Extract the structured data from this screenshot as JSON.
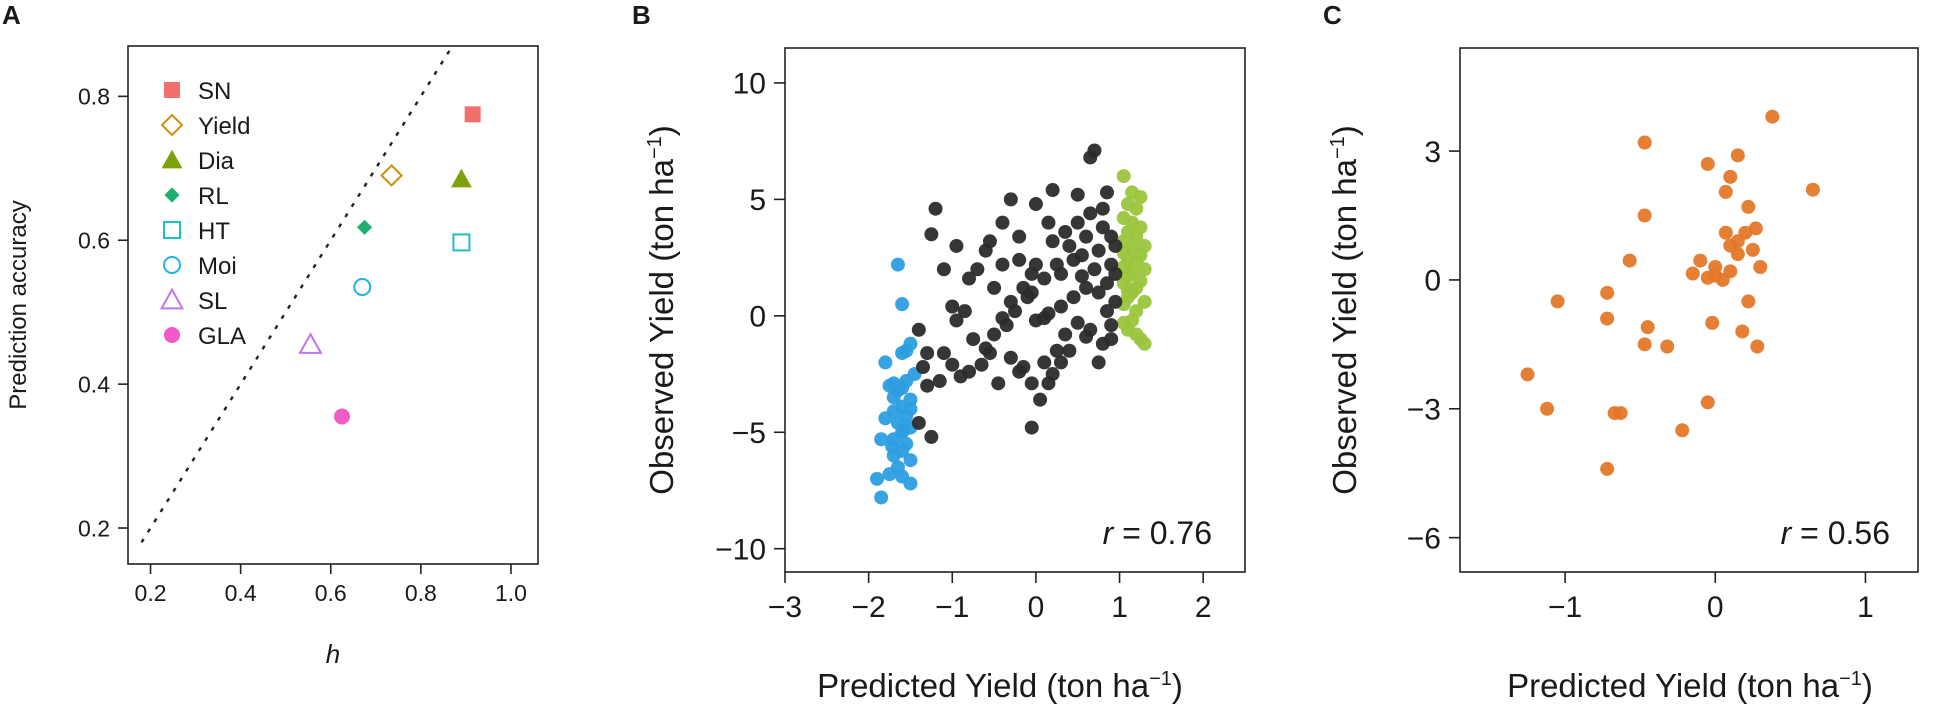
{
  "figure": {
    "panels": [
      {
        "letter": "A"
      },
      {
        "letter": "B"
      },
      {
        "letter": "C"
      }
    ]
  },
  "chart_data": [
    {
      "panel": "A",
      "type": "scatter",
      "xlabel": "h",
      "ylabel": "Prediction accuracy",
      "xlim": [
        0.15,
        1.06
      ],
      "ylim": [
        0.15,
        0.87
      ],
      "xticks": [
        0.2,
        0.4,
        0.6,
        0.8,
        1.0
      ],
      "xtick_labels": [
        "0.2",
        "0.4",
        "0.6",
        "0.8",
        "1.0"
      ],
      "yticks": [
        0.2,
        0.4,
        0.6,
        0.8
      ],
      "ytick_labels": [
        "0.2",
        "0.4",
        "0.6",
        "0.8"
      ],
      "reference_line": {
        "style": "dotted",
        "from": [
          0.18,
          0.18
        ],
        "to": [
          0.87,
          0.87
        ]
      },
      "legend_position": "top-left",
      "series": [
        {
          "name": "SN",
          "marker": "square",
          "filled": true,
          "color": "#f2706b",
          "x": 0.915,
          "y": 0.775
        },
        {
          "name": "Yield",
          "marker": "diamond",
          "filled": false,
          "color": "#c9920e",
          "x": 0.735,
          "y": 0.69
        },
        {
          "name": "Dia",
          "marker": "triangle",
          "filled": true,
          "color": "#7fa10b",
          "x": 0.89,
          "y": 0.685
        },
        {
          "name": "RL",
          "marker": "diamond",
          "filled": true,
          "color": "#1eb070",
          "x": 0.675,
          "y": 0.618
        },
        {
          "name": "HT",
          "marker": "square",
          "filled": false,
          "color": "#1fbfc6",
          "x": 0.89,
          "y": 0.597
        },
        {
          "name": "Moi",
          "marker": "circle",
          "filled": false,
          "color": "#1fb3e6",
          "x": 0.67,
          "y": 0.535
        },
        {
          "name": "SL",
          "marker": "triangle",
          "filled": false,
          "color": "#c274ea",
          "x": 0.555,
          "y": 0.455
        },
        {
          "name": "GLA",
          "marker": "circle",
          "filled": true,
          "color": "#f25ac9",
          "x": 0.625,
          "y": 0.355
        }
      ]
    },
    {
      "panel": "B",
      "type": "scatter",
      "xlabel": "Predicted Yield (ton ha",
      "ylabel": "Observed Yield (ton ha",
      "unit_superscript": "−1",
      "unit_close": ")",
      "xlim": [
        -3,
        2.5
      ],
      "ylim": [
        -11,
        11.5
      ],
      "xticks": [
        -3,
        -2,
        -1,
        0,
        1,
        2
      ],
      "xtick_labels": [
        "−3",
        "−2",
        "−1",
        "0",
        "1",
        "2"
      ],
      "yticks": [
        10,
        5,
        0,
        -5,
        -10
      ],
      "ytick_labels": [
        "10",
        "5",
        "0",
        "−5",
        "−10"
      ],
      "annotation": {
        "italic": "r",
        "text": " = 0.76"
      },
      "series": [
        {
          "color": "#2c9ee0",
          "points": [
            [
              -1.65,
              2.2
            ],
            [
              -1.6,
              0.5
            ],
            [
              -1.8,
              -2
            ],
            [
              -1.55,
              -1.5
            ],
            [
              -1.5,
              -1.2
            ],
            [
              -1.6,
              -1.6
            ],
            [
              -1.75,
              -3
            ],
            [
              -1.65,
              -3.2
            ],
            [
              -1.55,
              -2.8
            ],
            [
              -1.7,
              -2.9
            ],
            [
              -1.5,
              -3.6
            ],
            [
              -1.6,
              -3.9
            ],
            [
              -1.7,
              -4.1
            ],
            [
              -1.55,
              -4.3
            ],
            [
              -1.8,
              -4.4
            ],
            [
              -1.65,
              -4.6
            ],
            [
              -1.5,
              -4.8
            ],
            [
              -1.6,
              -5
            ],
            [
              -1.7,
              -5.3
            ],
            [
              -1.85,
              -5.3
            ],
            [
              -1.55,
              -5.5
            ],
            [
              -1.6,
              -5.8
            ],
            [
              -1.7,
              -6
            ],
            [
              -1.5,
              -6.2
            ],
            [
              -1.65,
              -6.5
            ],
            [
              -1.75,
              -6.8
            ],
            [
              -1.6,
              -6.9
            ],
            [
              -1.5,
              -7.2
            ],
            [
              -1.9,
              -7
            ],
            [
              -1.85,
              -7.8
            ],
            [
              -1.6,
              -3.1
            ],
            [
              -1.45,
              -2.5
            ],
            [
              -1.5,
              -4
            ],
            [
              -1.7,
              -3.5
            ],
            [
              -1.58,
              -4.9
            ],
            [
              -1.72,
              -5.6
            ]
          ]
        },
        {
          "color": "#9bc53d",
          "points": [
            [
              1.05,
              6
            ],
            [
              1.15,
              5.3
            ],
            [
              1.25,
              5.1
            ],
            [
              1.1,
              4.8
            ],
            [
              1.2,
              4.6
            ],
            [
              1.05,
              4.2
            ],
            [
              1.15,
              4
            ],
            [
              1.25,
              3.8
            ],
            [
              1.1,
              3.6
            ],
            [
              1.2,
              3.4
            ],
            [
              1.05,
              3.2
            ],
            [
              1.3,
              3
            ],
            [
              1.15,
              2.9
            ],
            [
              1.05,
              2.7
            ],
            [
              1.25,
              2.6
            ],
            [
              1.1,
              2.4
            ],
            [
              1.2,
              2.3
            ],
            [
              1.05,
              2.1
            ],
            [
              1.3,
              2
            ],
            [
              1.15,
              1.9
            ],
            [
              1.1,
              1.7
            ],
            [
              1.25,
              1.5
            ],
            [
              1.05,
              1.4
            ],
            [
              1.2,
              1.2
            ],
            [
              1.15,
              1
            ],
            [
              1.1,
              0.8
            ],
            [
              1.3,
              0.6
            ],
            [
              1.05,
              0.5
            ],
            [
              1.2,
              0.2
            ],
            [
              1.15,
              -0.2
            ],
            [
              1.1,
              -0.6
            ],
            [
              1.05,
              -0.3
            ],
            [
              1.25,
              -1
            ],
            [
              1.3,
              -1.2
            ],
            [
              1.2,
              -0.8
            ],
            [
              1.1,
              1.1
            ]
          ]
        },
        {
          "color": "#2b2b2b",
          "points": [
            [
              -1.2,
              4.6
            ],
            [
              -1.25,
              3.5
            ],
            [
              -1.0,
              0.4
            ],
            [
              -1.4,
              -0.6
            ],
            [
              -1.3,
              -1.6
            ],
            [
              -1.1,
              -1.6
            ],
            [
              -1.35,
              -2.2
            ],
            [
              -1.0,
              -2.1
            ],
            [
              -0.8,
              -2.4
            ],
            [
              -1.15,
              -2.8
            ],
            [
              -1.3,
              -3.0
            ],
            [
              -0.9,
              -2.6
            ],
            [
              -1.25,
              -5.2
            ],
            [
              -1.4,
              -4.6
            ],
            [
              -0.6,
              -1.4
            ],
            [
              -0.5,
              -0.8
            ],
            [
              -0.75,
              -1
            ],
            [
              -0.4,
              -0.1
            ],
            [
              -0.55,
              -1.6
            ],
            [
              -0.3,
              -1.8
            ],
            [
              -0.2,
              -2.4
            ],
            [
              -0.45,
              -2.9
            ],
            [
              -0.65,
              -2.1
            ],
            [
              -0.85,
              0.2
            ],
            [
              -0.7,
              2
            ],
            [
              -0.5,
              1.2
            ],
            [
              -0.3,
              0.6
            ],
            [
              -0.1,
              0.8
            ],
            [
              -0.6,
              2.8
            ],
            [
              -0.4,
              2.2
            ],
            [
              -0.2,
              2.4
            ],
            [
              -0.05,
              1.8
            ],
            [
              -0.15,
              1.2
            ],
            [
              -0.25,
              0.2
            ],
            [
              -0.35,
              -0.4
            ],
            [
              0.0,
              -0.2
            ],
            [
              0.15,
              0.1
            ],
            [
              0.3,
              0.4
            ],
            [
              0.45,
              0.8
            ],
            [
              0.6,
              1.2
            ],
            [
              0.75,
              1.0
            ],
            [
              0.85,
              0.2
            ],
            [
              0.9,
              -0.4
            ],
            [
              0.8,
              -1.2
            ],
            [
              0.65,
              -0.6
            ],
            [
              0.5,
              -0.3
            ],
            [
              0.35,
              -0.8
            ],
            [
              0.25,
              -1.5
            ],
            [
              0.1,
              -2.0
            ],
            [
              -0.05,
              -2.9
            ],
            [
              0.05,
              -3.6
            ],
            [
              0.2,
              -2.5
            ],
            [
              0.3,
              -2.0
            ],
            [
              0.4,
              -1.5
            ],
            [
              0.6,
              -0.9
            ],
            [
              0.75,
              -2.0
            ],
            [
              0.9,
              -1.0
            ],
            [
              0.95,
              0.6
            ],
            [
              0.85,
              1.4
            ],
            [
              0.7,
              2.0
            ],
            [
              0.55,
              2.6
            ],
            [
              0.4,
              3.0
            ],
            [
              0.25,
              2.2
            ],
            [
              0.1,
              1.6
            ],
            [
              -0.05,
              1.0
            ],
            [
              0.2,
              3.2
            ],
            [
              0.35,
              3.6
            ],
            [
              0.5,
              4.0
            ],
            [
              0.65,
              4.4
            ],
            [
              0.8,
              3.8
            ],
            [
              0.95,
              3.0
            ],
            [
              0.9,
              2.2
            ],
            [
              0.75,
              2.8
            ],
            [
              0.6,
              3.4
            ],
            [
              0.45,
              2.4
            ],
            [
              0.3,
              1.8
            ],
            [
              0.15,
              4.0
            ],
            [
              0.0,
              4.8
            ],
            [
              -0.2,
              3.4
            ],
            [
              -0.4,
              4.0
            ],
            [
              -0.55,
              3.2
            ],
            [
              -0.8,
              1.6
            ],
            [
              -0.95,
              3.0
            ],
            [
              -1.1,
              2.0
            ],
            [
              0.2,
              5.4
            ],
            [
              0.5,
              5.2
            ],
            [
              0.65,
              6.8
            ],
            [
              0.7,
              7.1
            ],
            [
              0.85,
              5.3
            ],
            [
              0.8,
              4.6
            ],
            [
              -0.05,
              -4.8
            ],
            [
              0.15,
              -2.9
            ],
            [
              0.0,
              2.2
            ],
            [
              0.1,
              -0.1
            ],
            [
              0.55,
              1.7
            ],
            [
              0.95,
              1.8
            ],
            [
              0.9,
              3.4
            ],
            [
              -0.15,
              -2.2
            ],
            [
              -0.3,
              5.0
            ],
            [
              -0.95,
              -0.2
            ]
          ]
        }
      ]
    },
    {
      "panel": "C",
      "type": "scatter",
      "xlabel": "Predicted Yield (ton ha",
      "ylabel": "Observed Yield (ton ha",
      "unit_superscript": "−1",
      "unit_close": ")",
      "xlim": [
        -1.7,
        1.35
      ],
      "ylim": [
        -6.8,
        5.4
      ],
      "xticks": [
        -1,
        0,
        1
      ],
      "xtick_labels": [
        "−1",
        "0",
        "1"
      ],
      "yticks": [
        3,
        0,
        -3,
        -6
      ],
      "ytick_labels": [
        "3",
        "0",
        "−3",
        "−6"
      ],
      "annotation": {
        "italic": "r",
        "text": " = 0.56"
      },
      "series": [
        {
          "color": "#e37829",
          "points": [
            [
              0.38,
              3.8
            ],
            [
              0.65,
              2.1
            ],
            [
              -0.47,
              3.2
            ],
            [
              -0.05,
              2.7
            ],
            [
              0.15,
              2.9
            ],
            [
              0.1,
              2.4
            ],
            [
              0.22,
              1.7
            ],
            [
              0.07,
              2.05
            ],
            [
              -0.47,
              1.5
            ],
            [
              0.27,
              1.2
            ],
            [
              0.07,
              1.1
            ],
            [
              0.2,
              1.1
            ],
            [
              0.15,
              0.9
            ],
            [
              0.1,
              0.8
            ],
            [
              0.15,
              0.6
            ],
            [
              0.25,
              0.7
            ],
            [
              -0.57,
              0.45
            ],
            [
              -0.1,
              0.45
            ],
            [
              0.0,
              0.3
            ],
            [
              0.1,
              0.2
            ],
            [
              -0.15,
              0.15
            ],
            [
              0.0,
              0.1
            ],
            [
              0.05,
              0.0
            ],
            [
              -0.05,
              0.05
            ],
            [
              0.3,
              0.3
            ],
            [
              -1.05,
              -0.5
            ],
            [
              -0.72,
              -0.3
            ],
            [
              0.22,
              -0.5
            ],
            [
              -0.72,
              -0.9
            ],
            [
              -0.45,
              -1.1
            ],
            [
              -0.02,
              -1.0
            ],
            [
              0.18,
              -1.2
            ],
            [
              -0.47,
              -1.5
            ],
            [
              -0.32,
              -1.55
            ],
            [
              0.28,
              -1.55
            ],
            [
              -1.25,
              -2.2
            ],
            [
              -1.12,
              -3.0
            ],
            [
              -0.05,
              -2.85
            ],
            [
              -0.67,
              -3.1
            ],
            [
              -0.63,
              -3.1
            ],
            [
              -0.22,
              -3.5
            ],
            [
              -0.72,
              -4.4
            ]
          ]
        }
      ]
    }
  ]
}
